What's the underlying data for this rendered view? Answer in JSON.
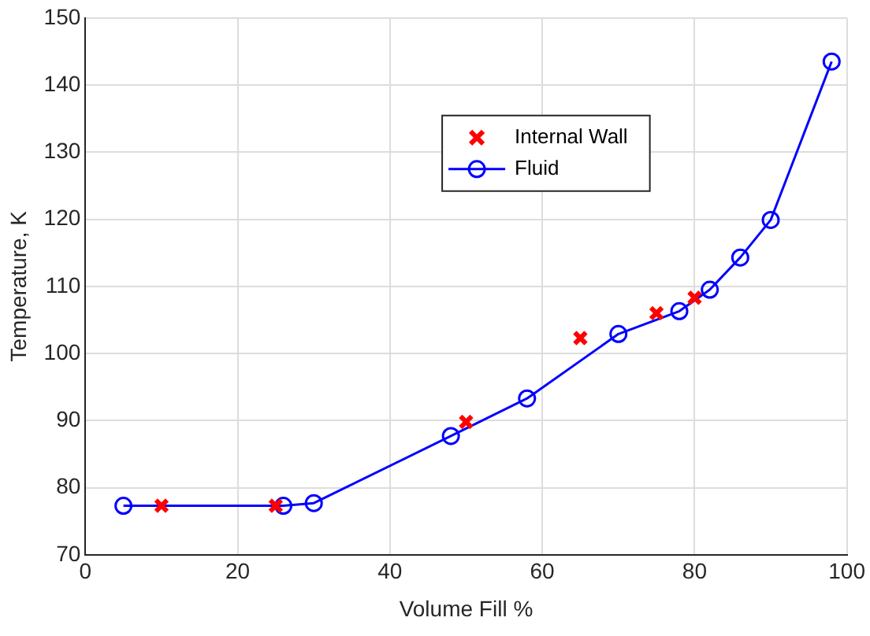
{
  "chart_data": {
    "type": "line",
    "xlabel": "Volume Fill %",
    "ylabel": "Temperature, K",
    "xlim": [
      0,
      100
    ],
    "xticks": [
      0,
      20,
      40,
      60,
      80,
      100
    ],
    "ylim": [
      70,
      150
    ],
    "yticks": [
      70,
      80,
      90,
      100,
      110,
      120,
      130,
      140,
      150
    ],
    "grid": true,
    "legend": "top right",
    "series": [
      {
        "name": "Internal Wall",
        "type": "scatter",
        "marker": "cross",
        "color": "#ff0000",
        "x": [
          10,
          25,
          50,
          65,
          75,
          80
        ],
        "values": [
          77.3,
          77.3,
          89.8,
          102.3,
          106,
          108.3
        ]
      },
      {
        "name": "Fluid",
        "type": "line",
        "marker": "circle",
        "line_style": "solid",
        "color": "#0000ff",
        "x": [
          5,
          26,
          30,
          48,
          58,
          70,
          78,
          82,
          86,
          90,
          98
        ],
        "values": [
          77.3,
          77.3,
          77.7,
          87.7,
          93.3,
          102.9,
          106.3,
          109.5,
          114.3,
          119.9,
          143.5
        ]
      }
    ]
  }
}
